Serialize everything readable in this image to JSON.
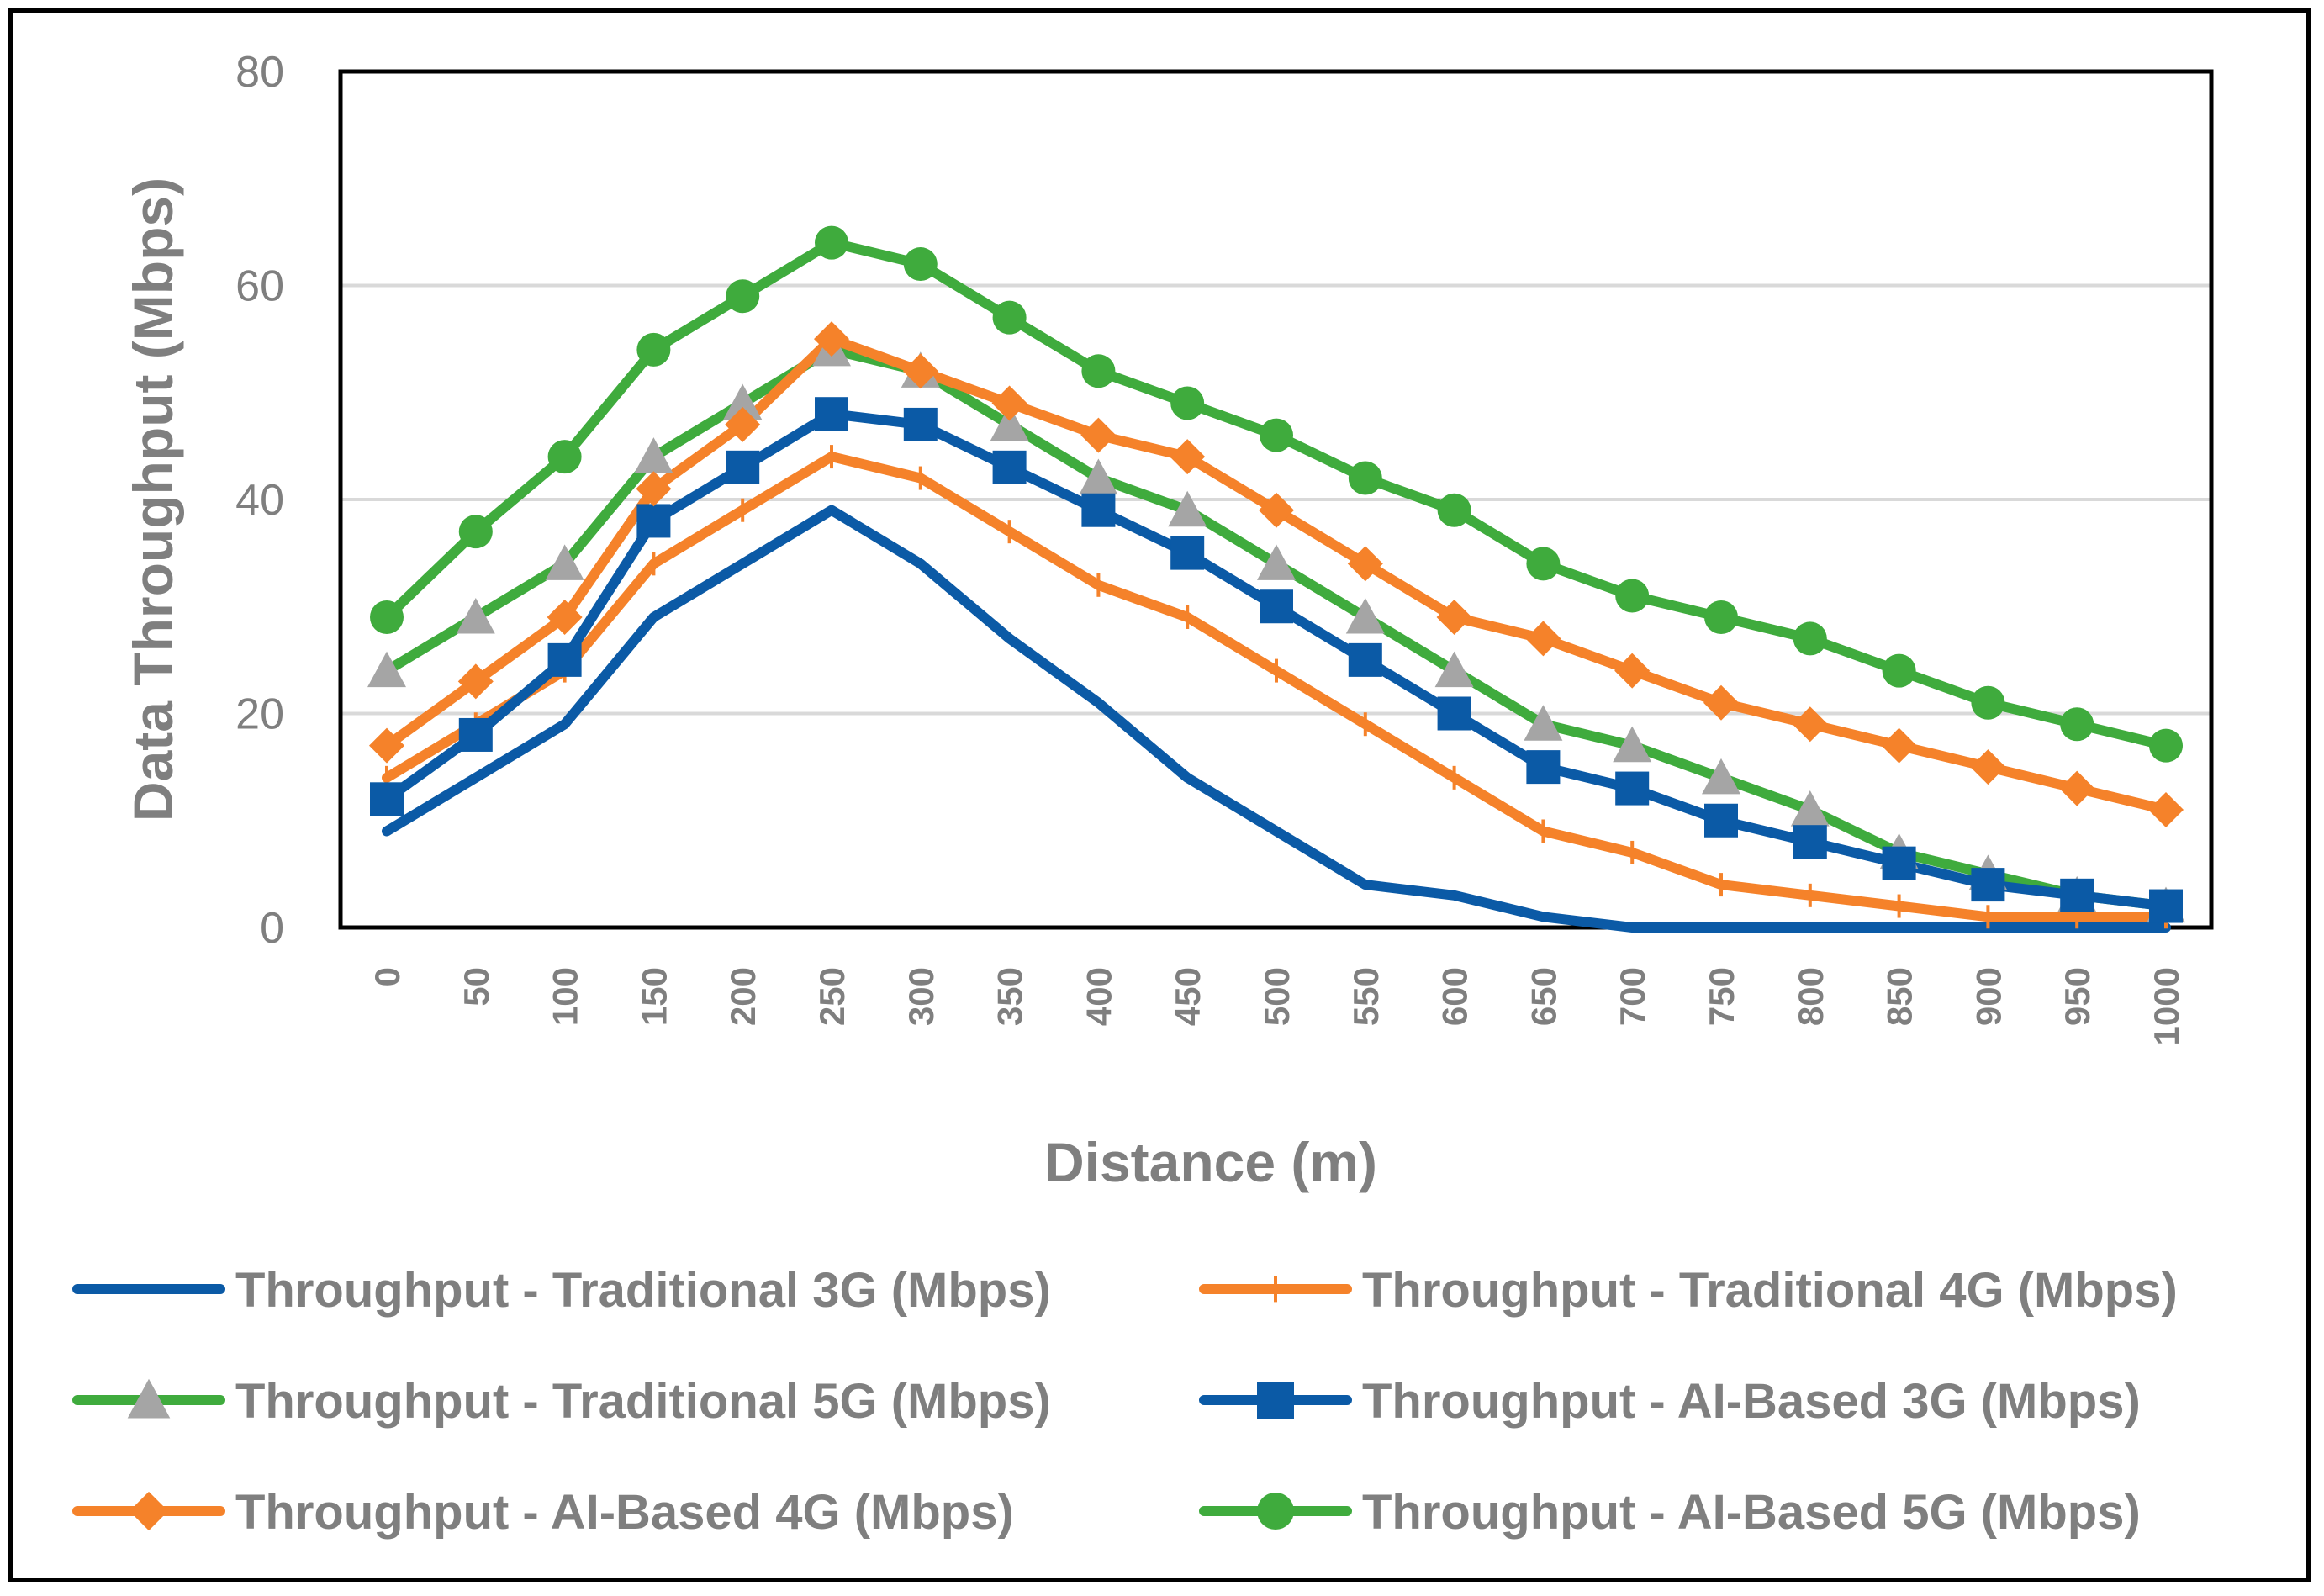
{
  "chart_data": {
    "type": "line",
    "title": "",
    "xlabel": "Distance (m)",
    "ylabel": "Data Throughput (Mbps)",
    "ylim": [
      0,
      80
    ],
    "yticks": [
      0,
      20,
      40,
      60,
      80
    ],
    "grid": true,
    "legend_position": "bottom",
    "x": [
      0,
      50,
      100,
      150,
      200,
      250,
      300,
      350,
      400,
      450,
      500,
      550,
      600,
      650,
      700,
      750,
      800,
      850,
      900,
      950,
      1000
    ],
    "series": [
      {
        "name": "Throughput - Traditional 3G (Mbps)",
        "color": "#0b5aa6",
        "marker": "none",
        "values": [
          9,
          14,
          19,
          29,
          34,
          39,
          34,
          27,
          21,
          14,
          9,
          4,
          3,
          1,
          0,
          0,
          0,
          0,
          0,
          0,
          0
        ]
      },
      {
        "name": "Throughput - Traditional 4G (Mbps)",
        "color": "#f5822a",
        "marker": "plus",
        "values": [
          14,
          19,
          24,
          34,
          39,
          44,
          42,
          37,
          32,
          29,
          24,
          19,
          14,
          9,
          7,
          4,
          3,
          2,
          1,
          1,
          1
        ]
      },
      {
        "name": "Throughput - Traditional 5G (Mbps)",
        "color": "#3fab3d",
        "marker": "triangle",
        "values": [
          24,
          29,
          34,
          44,
          49,
          54,
          52,
          47,
          42,
          39,
          34,
          29,
          24,
          19,
          17,
          14,
          11,
          7,
          5,
          3,
          2
        ]
      },
      {
        "name": "Throughput - AI-Based 3G (Mbps)",
        "color": "#0b5aa6",
        "marker": "square",
        "values": [
          12,
          18,
          25,
          38,
          43,
          48,
          47,
          43,
          39,
          35,
          30,
          25,
          20,
          15,
          13,
          10,
          8,
          6,
          4,
          3,
          2
        ]
      },
      {
        "name": "Throughput - AI-Based 4G (Mbps)",
        "color": "#f5822a",
        "marker": "diamond",
        "values": [
          17,
          23,
          29,
          41,
          47,
          55,
          52,
          49,
          46,
          44,
          39,
          34,
          29,
          27,
          24,
          21,
          19,
          17,
          15,
          13,
          11
        ]
      },
      {
        "name": "Throughput - AI-Based 5G (Mbps)",
        "color": "#3fab3d",
        "marker": "circle",
        "values": [
          29,
          37,
          44,
          54,
          59,
          64,
          62,
          57,
          52,
          49,
          46,
          42,
          39,
          34,
          31,
          29,
          27,
          24,
          21,
          19,
          17
        ]
      }
    ]
  }
}
